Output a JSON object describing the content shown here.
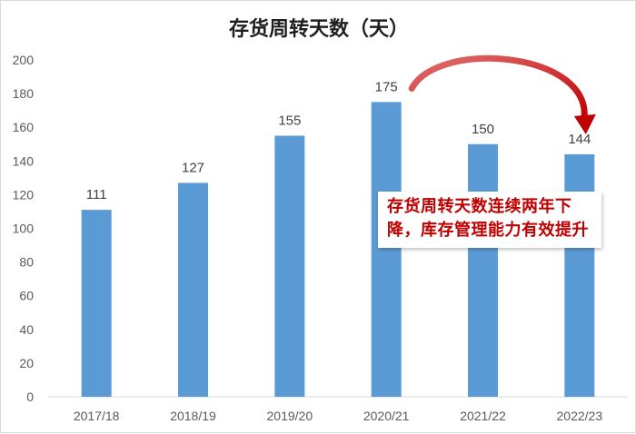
{
  "chart_data": {
    "type": "bar",
    "title": "存货周转天数（天）",
    "categories": [
      "2017/18",
      "2018/19",
      "2019/20",
      "2020/21",
      "2021/22",
      "2022/23"
    ],
    "values": [
      111,
      127,
      155,
      175,
      150,
      144
    ],
    "value_labels": [
      "111",
      "127",
      "155",
      "175",
      "150",
      "144"
    ],
    "ylim": [
      0,
      200
    ],
    "yticks": [
      0,
      20,
      40,
      60,
      80,
      100,
      120,
      140,
      160,
      180,
      200
    ],
    "ytick_labels": [
      "0",
      "20",
      "40",
      "60",
      "80",
      "100",
      "120",
      "140",
      "160",
      "180",
      "200"
    ],
    "grid": false,
    "legend": "none",
    "bar_color": "#5b9bd5",
    "annotation": {
      "text": "存货周转天数连续两年下降，库存管理能力有效提升",
      "color": "#c00000",
      "arrow_color": "#c00000",
      "arrow_from": "2020/21",
      "arrow_to": "2022/23"
    }
  }
}
